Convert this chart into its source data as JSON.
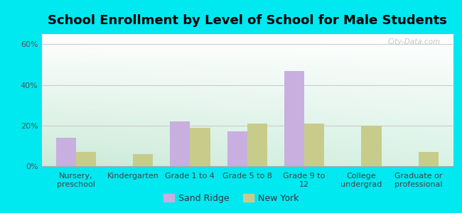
{
  "title": "School Enrollment by Level of School for Male Students",
  "categories": [
    "Nursery,\npreschool",
    "Kindergarten",
    "Grade 1 to 4",
    "Grade 5 to 8",
    "Grade 9 to\n12",
    "College\nundergrad",
    "Graduate or\nprofessional"
  ],
  "sand_ridge": [
    14,
    0,
    22,
    17,
    47,
    0,
    0
  ],
  "new_york": [
    7,
    6,
    19,
    21,
    21,
    20,
    7
  ],
  "sand_ridge_color": "#c9aee0",
  "new_york_color": "#c8cc8a",
  "bar_width": 0.35,
  "ylim": [
    0,
    65
  ],
  "yticks": [
    0,
    20,
    40,
    60
  ],
  "ytick_labels": [
    "0%",
    "20%",
    "40%",
    "60%"
  ],
  "background_color": "#00e8f0",
  "title_fontsize": 13,
  "tick_fontsize": 8,
  "legend_labels": [
    "Sand Ridge",
    "New York"
  ],
  "legend_fontsize": 9,
  "watermark": "City-Data.com",
  "grad_topleft": "#d8edd8",
  "grad_topright": "#e8f5e8",
  "grad_bottomleft": "#c8e8c8",
  "grad_bottomright": "#ffffff"
}
